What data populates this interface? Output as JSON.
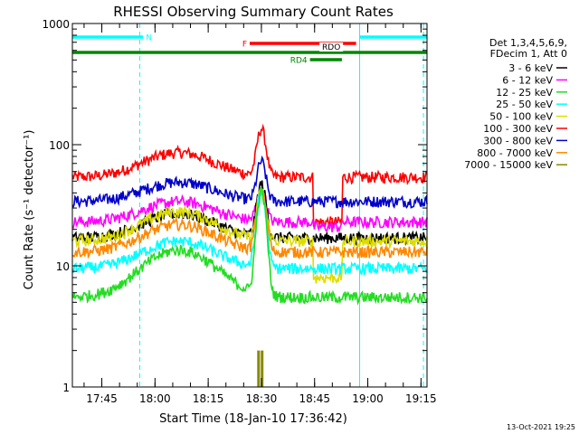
{
  "chart_data": {
    "type": "line",
    "title": "RHESSI Observing Summary Count Rates",
    "xlabel": "Start Time (18-Jan-10 17:36:42)",
    "ylabel": "Count Rate (s⁻¹ detector⁻¹)",
    "yscale": "log",
    "ylim": [
      1,
      1000
    ],
    "xlim_minutes": [
      0,
      100
    ],
    "x_ticks": [
      {
        "m": 8.3,
        "label": "17:45"
      },
      {
        "m": 23.3,
        "label": "18:00"
      },
      {
        "m": 38.3,
        "label": "18:15"
      },
      {
        "m": 53.3,
        "label": "18:30"
      },
      {
        "m": 68.3,
        "label": "18:45"
      },
      {
        "m": 83.3,
        "label": "19:00"
      },
      {
        "m": 98.3,
        "label": "19:15"
      }
    ],
    "y_ticks": [
      {
        "v": 1,
        "label": "1"
      },
      {
        "v": 10,
        "label": "10"
      },
      {
        "v": 100,
        "label": "100"
      },
      {
        "v": 1000,
        "label": "1000"
      }
    ],
    "legend_header": [
      "Det 1,3,4,5,6,9,",
      "FDecim 1, Att 0"
    ],
    "legend": [
      {
        "label": "3 - 6 keV",
        "color": "#000000"
      },
      {
        "label": "6 - 12 keV",
        "color": "#ff00ff"
      },
      {
        "label": "12 - 25 keV",
        "color": "#22dd22"
      },
      {
        "label": "25 - 50 keV",
        "color": "#00ffff"
      },
      {
        "label": "50 - 100 keV",
        "color": "#dddd00"
      },
      {
        "label": "100 - 300 keV",
        "color": "#ff0000"
      },
      {
        "label": "300 - 800 keV",
        "color": "#0000cc"
      },
      {
        "label": "800 - 7000 keV",
        "color": "#ff8800"
      },
      {
        "label": "7000 - 15000 keV",
        "color": "#888800"
      }
    ],
    "flags": [
      {
        "label": "N",
        "color": "#00ffff",
        "segments": [
          [
            0,
            20
          ],
          [
            81,
            100
          ]
        ]
      },
      {
        "label": "F",
        "color": "#ff0000",
        "segments": [
          [
            50,
            80
          ]
        ]
      },
      {
        "label": "RDO",
        "color": "#008800",
        "segments": [
          [
            0,
            100
          ]
        ]
      },
      {
        "label": "RD4",
        "color": "#008800",
        "segments": [
          [
            67,
            76
          ]
        ]
      }
    ],
    "eclipse_boundaries_minutes": [
      0,
      19,
      81,
      99
    ],
    "series": [
      {
        "name": "100 - 300 keV",
        "color": "#ff0000",
        "base": 54,
        "hump": 32,
        "peak": 80,
        "drop": [
          [
            68,
            76,
            23
          ]
        ]
      },
      {
        "name": "300 - 800 keV",
        "color": "#0000cc",
        "base": 34,
        "hump": 15,
        "peak": 38,
        "drop": []
      },
      {
        "name": "6 - 12 keV",
        "color": "#ff00ff",
        "base": 23,
        "hump": 11,
        "peak": 20,
        "drop": [
          [
            68,
            76,
            21
          ]
        ]
      },
      {
        "name": "3 - 6 keV",
        "color": "#000000",
        "base": 17,
        "hump": 10,
        "peak": 30,
        "drop": []
      },
      {
        "name": "50 - 100 keV",
        "color": "#dddd00",
        "base": 16,
        "hump": 12,
        "peak": 25,
        "drop": [
          [
            68,
            76,
            8
          ]
        ]
      },
      {
        "name": "800 - 7000 keV",
        "color": "#ff8800",
        "base": 13,
        "hump": 9,
        "peak": 28,
        "drop": []
      },
      {
        "name": "25 - 50 keV",
        "color": "#00ffff",
        "base": 9.5,
        "hump": 6.5,
        "peak": 30,
        "drop": []
      },
      {
        "name": "12 - 25 keV",
        "color": "#22dd22",
        "base": 5.5,
        "hump": 8,
        "peak": 35,
        "drop": []
      }
    ],
    "spike_series": {
      "name": "7000 - 15000 keV",
      "color": "#888800",
      "x_minutes": [
        52.5,
        53.5
      ],
      "value": 2.0
    }
  },
  "footer_timestamp": "13-Oct-2021 19:25"
}
